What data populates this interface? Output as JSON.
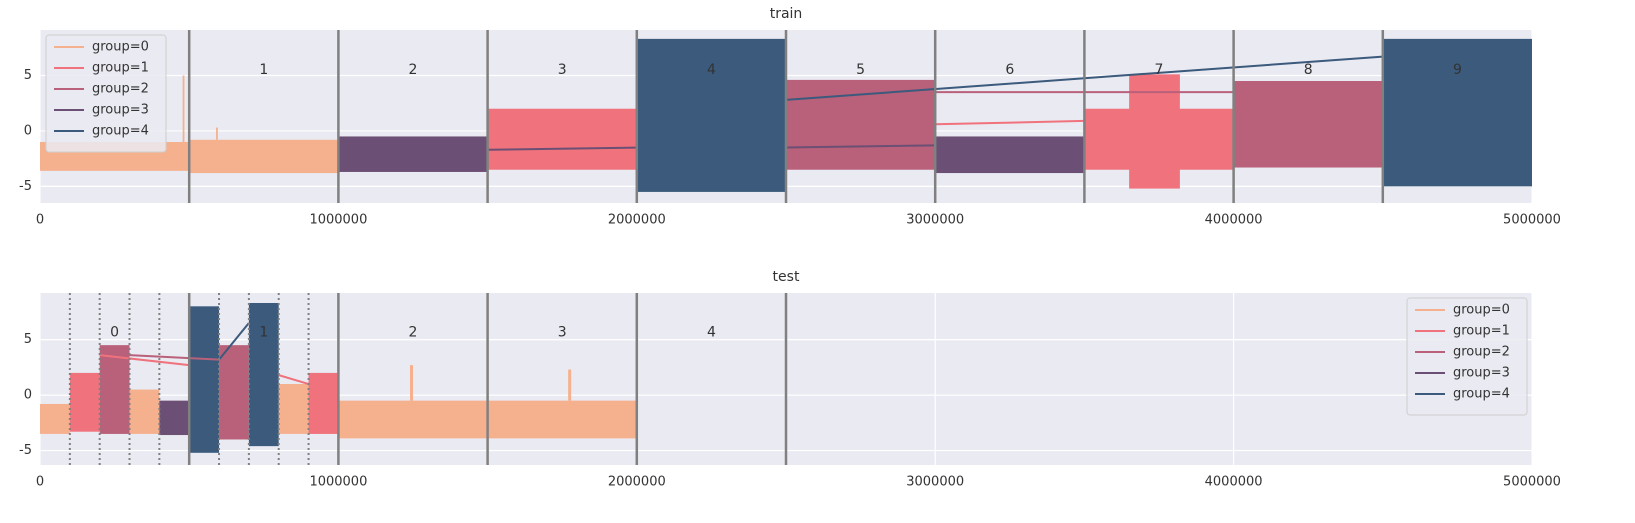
{
  "chart_data": [
    {
      "type": "band",
      "title": "train",
      "xlim": [
        0,
        5000000
      ],
      "ylim": [
        -6.5,
        9.1
      ],
      "xticks": [
        0,
        1000000,
        2000000,
        3000000,
        4000000,
        5000000
      ],
      "yticks": [
        -5,
        0,
        5
      ],
      "grid": true,
      "legend": "upper left",
      "boundaries": [
        500000,
        1000000,
        1500000,
        2000000,
        2500000,
        3000000,
        3500000,
        4000000,
        4500000
      ],
      "dotted_boundaries": [],
      "batch_labels": [
        null,
        "1",
        "2",
        "3",
        "4",
        "5",
        "6",
        "7",
        "8",
        "9"
      ],
      "series": [
        {
          "name": "group=0",
          "color": "#f5b08e",
          "bands": [
            {
              "x": [
                0,
                500000
              ],
              "range": [
                -3.6,
                -1
              ]
            },
            {
              "x": [
                500000,
                1000000
              ],
              "range": [
                -3.8,
                -0.8
              ]
            },
            {
              "x": [
                478000,
                484000
              ],
              "range": [
                -1,
                5
              ]
            },
            {
              "x": [
                590000,
                596000
              ],
              "range": [
                -0.8,
                0.3
              ]
            }
          ],
          "line": {
            "x": [],
            "values": []
          }
        },
        {
          "name": "group=1",
          "color": "#f0727c",
          "bands": [
            {
              "x": [
                1500000,
                2000000
              ],
              "range": [
                -3.5,
                2
              ]
            },
            {
              "x": [
                3500000,
                4000000
              ],
              "range": [
                -3.5,
                2
              ]
            },
            {
              "x": [
                3650000,
                3820000
              ],
              "range": [
                -5.2,
                5.1
              ]
            }
          ],
          "line": {
            "x": [
              3000000,
              3500000
            ],
            "values": [
              0.6,
              0.9
            ]
          }
        },
        {
          "name": "group=2",
          "color": "#b9607a",
          "bands": [
            {
              "x": [
                2500000,
                3000000
              ],
              "range": [
                -3.5,
                4.6
              ]
            },
            {
              "x": [
                4000000,
                4500000
              ],
              "range": [
                -3.3,
                4.5
              ]
            }
          ],
          "line": {
            "x": [
              3000000,
              4000000
            ],
            "values": [
              3.5,
              3.5
            ]
          }
        },
        {
          "name": "group=3",
          "color": "#6b4f74",
          "bands": [
            {
              "x": [
                1000000,
                1500000
              ],
              "range": [
                -3.7,
                -0.5
              ]
            },
            {
              "x": [
                3000000,
                3500000
              ],
              "range": [
                -3.8,
                -0.5
              ]
            }
          ],
          "line": {
            "x": [
              1500000,
              2000000,
              null,
              2500000,
              3000000
            ],
            "values": [
              -1.7,
              -1.5,
              null,
              -1.5,
              -1.3
            ]
          }
        },
        {
          "name": "group=4",
          "color": "#3b5a7c",
          "bands": [
            {
              "x": [
                2000000,
                2500000
              ],
              "range": [
                -5.5,
                8.3
              ]
            },
            {
              "x": [
                4500000,
                5000000
              ],
              "range": [
                -5,
                8.3
              ]
            }
          ],
          "line": {
            "x": [
              2500000,
              4500000
            ],
            "values": [
              2.8,
              6.7
            ]
          }
        }
      ]
    },
    {
      "type": "band",
      "title": "test",
      "xlim": [
        0,
        5000000
      ],
      "ylim": [
        -6.3,
        9.2
      ],
      "xticks": [
        0,
        1000000,
        2000000,
        3000000,
        4000000,
        5000000
      ],
      "yticks": [
        -5,
        0,
        5
      ],
      "grid": true,
      "legend": "upper right",
      "boundaries": [
        500000,
        1000000,
        1500000,
        2000000,
        2500000
      ],
      "dotted_boundaries": [
        100000,
        200000,
        300000,
        400000,
        600000,
        700000,
        800000,
        900000
      ],
      "batch_labels": [
        "0",
        "1",
        "2",
        "3",
        "4"
      ],
      "series": [
        {
          "name": "group=0",
          "color": "#f5b08e",
          "bands": [
            {
              "x": [
                0,
                100000
              ],
              "range": [
                -3.5,
                -0.8
              ]
            },
            {
              "x": [
                300000,
                400000
              ],
              "range": [
                -3.5,
                0.5
              ]
            },
            {
              "x": [
                800000,
                900000
              ],
              "range": [
                -3.5,
                1
              ]
            },
            {
              "x": [
                1000000,
                2000000
              ],
              "range": [
                -3.9,
                -0.5
              ]
            },
            {
              "x": [
                1240000,
                1250000
              ],
              "range": [
                -0.5,
                2.7
              ]
            },
            {
              "x": [
                1770000,
                1780000
              ],
              "range": [
                -0.5,
                2.3
              ]
            }
          ],
          "line": {
            "x": [],
            "values": []
          }
        },
        {
          "name": "group=1",
          "color": "#f0727c",
          "bands": [
            {
              "x": [
                100000,
                200000
              ],
              "range": [
                -3.3,
                2
              ]
            },
            {
              "x": [
                900000,
                1000000
              ],
              "range": [
                -3.5,
                2
              ]
            }
          ],
          "line": {
            "x": [
              200000,
              500000,
              null,
              800000,
              900000
            ],
            "values": [
              3.6,
              2.7,
              null,
              1.8,
              1
            ]
          }
        },
        {
          "name": "group=2",
          "color": "#b9607a",
          "bands": [
            {
              "x": [
                200000,
                300000
              ],
              "range": [
                -3.5,
                4.5
              ]
            },
            {
              "x": [
                600000,
                700000
              ],
              "range": [
                -4,
                4.5
              ]
            }
          ],
          "line": {
            "x": [
              300000,
              600000
            ],
            "values": [
              3.6,
              3.2
            ]
          }
        },
        {
          "name": "group=3",
          "color": "#6b4f74",
          "bands": [
            {
              "x": [
                400000,
                500000
              ],
              "range": [
                -3.6,
                -0.5
              ]
            }
          ],
          "line": {
            "x": [],
            "values": []
          }
        },
        {
          "name": "group=4",
          "color": "#3b5a7c",
          "bands": [
            {
              "x": [
                500000,
                600000
              ],
              "range": [
                -5.2,
                8
              ]
            },
            {
              "x": [
                700000,
                800000
              ],
              "range": [
                -4.6,
                8.3
              ]
            }
          ],
          "line": {
            "x": [
              600000,
              700000
            ],
            "values": [
              3.2,
              6.5
            ]
          }
        }
      ]
    }
  ]
}
